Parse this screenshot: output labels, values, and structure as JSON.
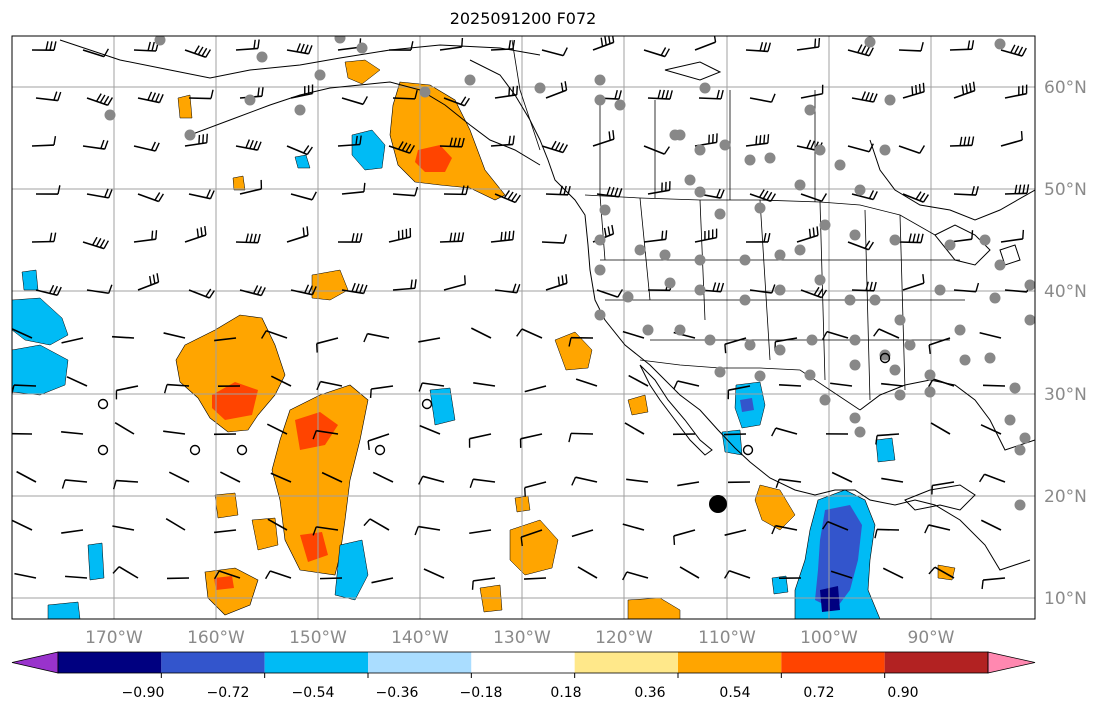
{
  "title": "2025091200 F072",
  "lon_labels": [
    "170°W",
    "160°W",
    "150°W",
    "140°W",
    "130°W",
    "120°W",
    "110°W",
    "100°W",
    "90°W"
  ],
  "lat_labels": [
    "60°N",
    "50°N",
    "40°N",
    "30°N",
    "20°N",
    "10°N"
  ],
  "colorbar": {
    "colors": [
      "#9933cc",
      "#000080",
      "#3355cc",
      "#00bbf5",
      "#aaddff",
      "#ffffff",
      "#ffe88a",
      "#ffa500",
      "#ff4400",
      "#b22222",
      "#ff88b0"
    ],
    "tick_labels": [
      "−0.90",
      "−0.72",
      "−0.54",
      "−0.36",
      "−0.18",
      "0.18",
      "0.36",
      "0.54",
      "0.72",
      "0.90"
    ]
  },
  "colors": {
    "land_outline": "#000000",
    "grid": "#a0a0a0",
    "station": "#888888",
    "positive_fill": "#ffa500",
    "positive_strong": "#ff4400",
    "negative_fill": "#00bbf5",
    "negative_strong": "#3355cc",
    "negative_deep": "#000080"
  }
}
